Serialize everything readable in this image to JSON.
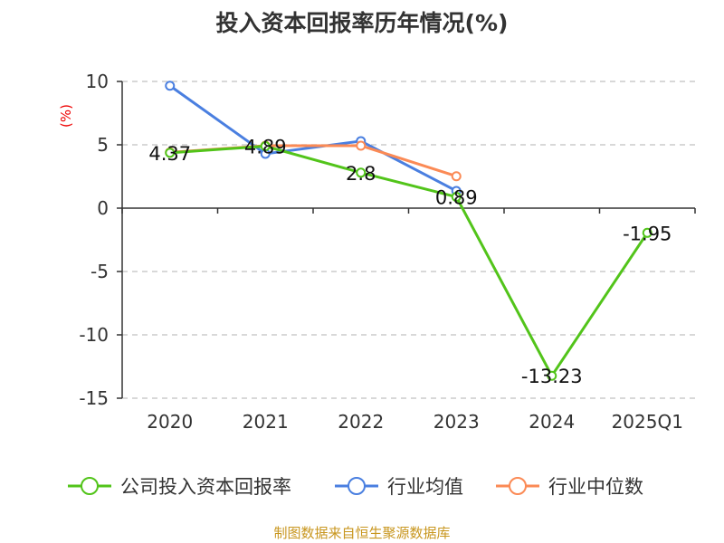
{
  "chart_data": {
    "type": "line",
    "title": "投入资本回报率历年情况(%)",
    "ylabel": "(%)",
    "xlabel": "",
    "categories": [
      "2020",
      "2021",
      "2022",
      "2023",
      "2024",
      "2025Q1"
    ],
    "ylim": [
      -15,
      10
    ],
    "yticks": [
      10,
      5,
      0,
      -5,
      -10,
      -15
    ],
    "grid": true,
    "legend_position": "bottom",
    "series": [
      {
        "name": "公司投入资本回报率",
        "color": "#52c41a",
        "values": [
          4.37,
          4.89,
          2.8,
          0.89,
          -13.23,
          -1.95
        ],
        "labels": [
          "4.37",
          "4.89",
          "2.8",
          "0.89",
          "-13.23",
          "-1.95"
        ]
      },
      {
        "name": "行业均值",
        "color": "#4a7fe0",
        "values": [
          9.66,
          4.29,
          5.29,
          1.36,
          null,
          null
        ]
      },
      {
        "name": "行业中位数",
        "color": "#fb8a55",
        "values": [
          4.4,
          4.93,
          4.93,
          2.52,
          null,
          null
        ]
      }
    ]
  },
  "source": "制图数据来自恒生聚源数据库"
}
